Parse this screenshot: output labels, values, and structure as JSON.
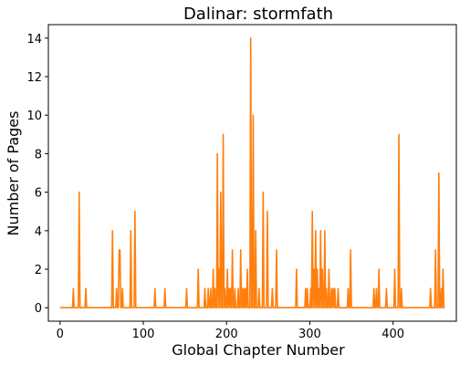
{
  "chart_data": {
    "type": "line",
    "title": "Dalinar: stormfath",
    "xlabel": "Global Chapter Number",
    "ylabel": "Number of Pages",
    "xlim": [
      -14,
      476
    ],
    "ylim": [
      -0.7,
      14.7
    ],
    "xticks": [
      0,
      100,
      200,
      300,
      400
    ],
    "yticks": [
      0,
      2,
      4,
      6,
      8,
      10,
      12,
      14
    ],
    "grid": false,
    "series": [
      {
        "color": "#ff7f0e",
        "spikes": [
          [
            16,
            1
          ],
          [
            23,
            6
          ],
          [
            31,
            1
          ],
          [
            63,
            4
          ],
          [
            68,
            1
          ],
          [
            71,
            3
          ],
          [
            72,
            3
          ],
          [
            75,
            1
          ],
          [
            85,
            4
          ],
          [
            90,
            5
          ],
          [
            114,
            1
          ],
          [
            126,
            1
          ],
          [
            152,
            1
          ],
          [
            166,
            2
          ],
          [
            174,
            1
          ],
          [
            178,
            1
          ],
          [
            181,
            1
          ],
          [
            184,
            2
          ],
          [
            186,
            1
          ],
          [
            189,
            8
          ],
          [
            191,
            2
          ],
          [
            193,
            6
          ],
          [
            196,
            9
          ],
          [
            198,
            1
          ],
          [
            201,
            2
          ],
          [
            203,
            1
          ],
          [
            205,
            1
          ],
          [
            207,
            3
          ],
          [
            210,
            1
          ],
          [
            214,
            1
          ],
          [
            217,
            3
          ],
          [
            219,
            1
          ],
          [
            221,
            1
          ],
          [
            223,
            1
          ],
          [
            225,
            2
          ],
          [
            229,
            14
          ],
          [
            232,
            10
          ],
          [
            235,
            4
          ],
          [
            239,
            1
          ],
          [
            244,
            6
          ],
          [
            249,
            5
          ],
          [
            255,
            1
          ],
          [
            260,
            3
          ],
          [
            284,
            2
          ],
          [
            295,
            1
          ],
          [
            297,
            1
          ],
          [
            301,
            1
          ],
          [
            303,
            5
          ],
          [
            305,
            2
          ],
          [
            307,
            4
          ],
          [
            309,
            2
          ],
          [
            311,
            1
          ],
          [
            313,
            4
          ],
          [
            315,
            2
          ],
          [
            318,
            4
          ],
          [
            320,
            1
          ],
          [
            323,
            2
          ],
          [
            326,
            1
          ],
          [
            328,
            1
          ],
          [
            330,
            1
          ],
          [
            334,
            1
          ],
          [
            346,
            1
          ],
          [
            349,
            3
          ],
          [
            377,
            1
          ],
          [
            380,
            1
          ],
          [
            383,
            2
          ],
          [
            392,
            1
          ],
          [
            402,
            2
          ],
          [
            407,
            9
          ],
          [
            410,
            1
          ],
          [
            445,
            1
          ],
          [
            451,
            3
          ],
          [
            455,
            7
          ],
          [
            458,
            1
          ],
          [
            460,
            2
          ]
        ],
        "x_start": 0,
        "x_end": 462
      }
    ]
  },
  "colors": {
    "line": "#ff7f0e",
    "axes": "#000000",
    "background": "#ffffff"
  }
}
